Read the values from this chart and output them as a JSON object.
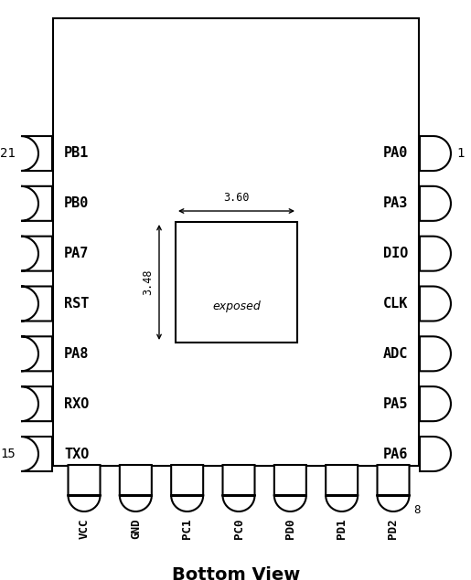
{
  "title": "Bottom View",
  "title_fontsize": 14,
  "bg_color": "#ffffff",
  "line_color": "#000000",
  "left_pins": [
    "PB1",
    "PB0",
    "PA7",
    "RST",
    "PA8",
    "RXO",
    "TXO"
  ],
  "right_pins": [
    "PA0",
    "PA3",
    "DIO",
    "CLK",
    "ADC",
    "PA5",
    "PA6"
  ],
  "bottom_pins": [
    "VCC",
    "GND",
    "PC1",
    "PC0",
    "PD0",
    "PD1",
    "PD2"
  ],
  "left_num_top": "21",
  "left_num_bot": "15",
  "right_num_top": "1",
  "bottom_num_last": "8",
  "dim_width": "3.60",
  "dim_height": "3.48",
  "exposed_label": "exposed"
}
